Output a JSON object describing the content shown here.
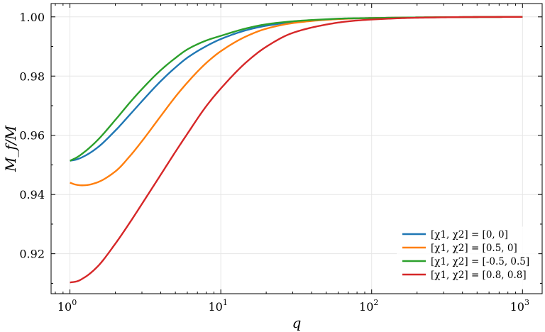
{
  "chart_data": {
    "type": "line",
    "xscale": "log",
    "xlim": [
      0.75,
      1350
    ],
    "ylim": [
      0.9065,
      1.0045
    ],
    "xlabel": "q",
    "ylabel": "M_f/M",
    "grid": true,
    "legend_placement": "lower-right",
    "x_ticks": [
      {
        "value": 1,
        "base": "10",
        "exp": "0"
      },
      {
        "value": 10,
        "base": "10",
        "exp": "1"
      },
      {
        "value": 100,
        "base": "10",
        "exp": "2"
      },
      {
        "value": 1000,
        "base": "10",
        "exp": "3"
      }
    ],
    "y_ticks": [
      {
        "value": 0.92,
        "label": "0.92"
      },
      {
        "value": 0.94,
        "label": "0.94"
      },
      {
        "value": 0.96,
        "label": "0.96"
      },
      {
        "value": 0.98,
        "label": "0.98"
      },
      {
        "value": 1.0,
        "label": "1.00"
      }
    ],
    "series": [
      {
        "name": "[χ1, χ2] = [0, 0]",
        "color": "#1f77b4",
        "x": [
          1,
          1.1,
          1.25,
          1.5,
          2,
          2.5,
          3,
          4,
          5,
          6,
          8,
          10,
          15,
          20,
          30,
          50,
          70,
          100,
          200,
          500,
          1000
        ],
        "y": [
          0.9514,
          0.9518,
          0.953,
          0.9556,
          0.9616,
          0.967,
          0.9715,
          0.9783,
          0.9829,
          0.9862,
          0.9901,
          0.9925,
          0.9956,
          0.997,
          0.9982,
          0.9991,
          0.9994,
          0.9996,
          0.9998,
          0.99995,
          1.0
        ]
      },
      {
        "name": "[χ1, χ2] = [0.5, 0]",
        "color": "#ff7f0e",
        "x": [
          1,
          1.1,
          1.2,
          1.3,
          1.5,
          2,
          2.5,
          3,
          4,
          5,
          6,
          8,
          10,
          15,
          20,
          30,
          50,
          70,
          100,
          200,
          500,
          1000
        ],
        "y": [
          0.944,
          0.9433,
          0.9431,
          0.9432,
          0.944,
          0.9478,
          0.953,
          0.958,
          0.9665,
          0.973,
          0.9778,
          0.9844,
          0.9884,
          0.9936,
          0.996,
          0.9979,
          0.999,
          0.9994,
          0.9996,
          0.9998,
          0.99995,
          1.0
        ]
      },
      {
        "name": "[χ1, χ2] = [-0.5, 0.5]",
        "color": "#2ca02c",
        "x": [
          1,
          1.1,
          1.25,
          1.5,
          2,
          2.5,
          3,
          4,
          5,
          6,
          8,
          10,
          15,
          20,
          30,
          50,
          70,
          100,
          200,
          500,
          1000
        ],
        "y": [
          0.9514,
          0.9524,
          0.9544,
          0.958,
          0.9652,
          0.9711,
          0.9756,
          0.982,
          0.9861,
          0.989,
          0.992,
          0.9936,
          0.9962,
          0.9975,
          0.9985,
          0.9992,
          0.9995,
          0.9996,
          0.9998,
          0.99995,
          1.0
        ]
      },
      {
        "name": "[χ1, χ2] = [0.8, 0.8]",
        "color": "#d62728",
        "x": [
          1,
          1.1,
          1.25,
          1.5,
          2,
          2.5,
          3,
          3.5,
          4,
          5,
          6,
          8,
          10,
          15,
          20,
          30,
          50,
          70,
          100,
          200,
          500,
          1000
        ],
        "y": [
          0.9103,
          0.9106,
          0.912,
          0.9153,
          0.9234,
          0.9306,
          0.9368,
          0.9421,
          0.9467,
          0.9544,
          0.9605,
          0.9698,
          0.9758,
          0.985,
          0.9899,
          0.9946,
          0.9974,
          0.9985,
          0.9991,
          0.9997,
          0.99995,
          1.0
        ]
      }
    ]
  }
}
